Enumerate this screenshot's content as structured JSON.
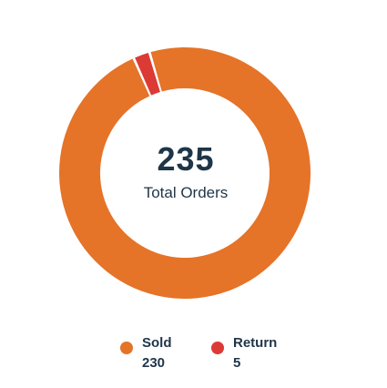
{
  "chart_data": {
    "type": "pie",
    "title": "",
    "center_total": "235",
    "center_label": "Total Orders",
    "categories": [
      "Sold",
      "Return"
    ],
    "values": [
      230,
      5
    ],
    "colors": [
      "#e57328",
      "#dc3a34"
    ],
    "legend_position": "bottom"
  },
  "legend": [
    {
      "name": "Sold",
      "value": "230",
      "color": "#e57328"
    },
    {
      "name": "Return",
      "value": "5",
      "color": "#dc3a34"
    }
  ]
}
